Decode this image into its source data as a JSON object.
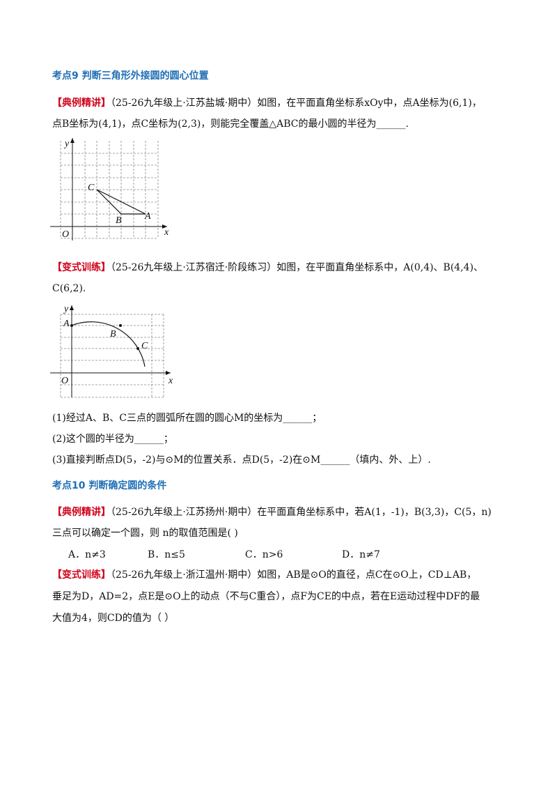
{
  "section1": {
    "title": "考点9  判断三角形外接圆的圆心位置",
    "example": {
      "tag": "【典例精讲】",
      "line1": "（25-26九年级上·江苏盐城·期中）如图，在平面直角坐标系xOy中，点A坐标为(6,1)，",
      "line2": "点B坐标为(4,1)，点C坐标为(2,3)，则能完全覆盖△ABC的最小圆的半径为______."
    },
    "figure1": {
      "y": "y",
      "x": "x",
      "o": "O",
      "a": "A",
      "b": "B",
      "c": "C"
    },
    "variant": {
      "tag": "【变式训练】",
      "line1": "（25-26九年级上·江苏宿迁·阶段练习）如图，在平面直角坐标系中，A(0,4)、B(4,4)、",
      "line2": "C(6,2)."
    },
    "figure2": {
      "y": "y",
      "x": "x",
      "o": "O",
      "a": "A",
      "b": "B",
      "c": "C"
    },
    "questions": [
      "(1)经过A、B、C三点的圆弧所在圆的圆心M的坐标为______；",
      "(2)这个圆的半径为______；",
      "(3)直接判断点D(5，-2)与⊙M的位置关系．点D(5，-2)在⊙M______（填内、外、上）."
    ]
  },
  "section2": {
    "title": "考点10  判断确定圆的条件",
    "example": {
      "tag": "【典例精讲】",
      "line1": "（25-26九年级上·江苏扬州·期中）在平面直角坐标系中，若A(1，-1)，B(3,3)，C(5，n)",
      "line2": "三点可以确定一个圆，则 n的取值范围是(    )",
      "options": [
        "A．n≠3",
        "B．n≤5",
        "C．n>6",
        "D．n≠7"
      ]
    },
    "variant": {
      "tag": "【变式训练】",
      "line1": "（25-26九年级上·浙江温州·期中）如图，AB是⊙O的直径，点C在⊙O上，CD⊥AB，",
      "line2": "垂足为D，AD=2，点E是⊙O上的动点（不与C重合），点F为CE的中点，若在E运动过程中DF的最",
      "line3": "大值为4，则CD的值为（      ）"
    }
  }
}
